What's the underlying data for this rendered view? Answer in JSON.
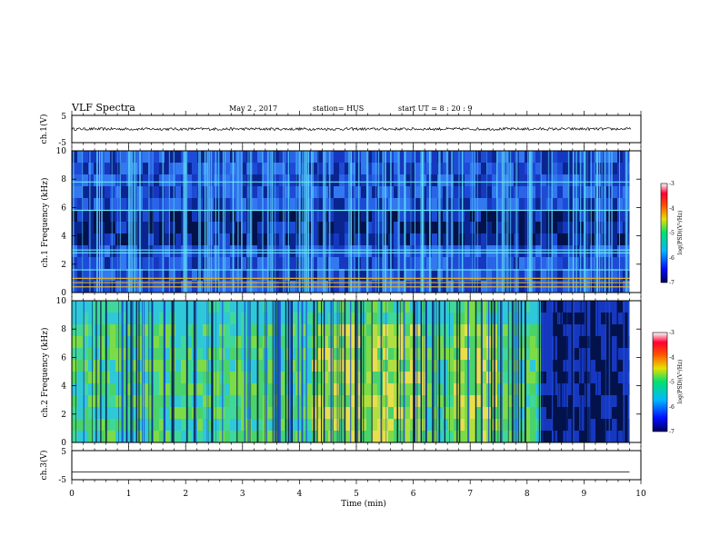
{
  "header": {
    "title": "VLF Spectra",
    "date": "May 2 , 2017",
    "station": "station= HUS",
    "start": "start UT = 8 : 20 : 9"
  },
  "colors": {
    "background": "#ffffff",
    "axis": "#000000",
    "spec_dark": "#03124a",
    "spec_blue": "#1d4bd6",
    "spec_cyan": "#38d0e6",
    "spec_green": "#49d36a",
    "spec_yellow": "#e6e04a"
  },
  "chart_data": [
    {
      "type": "line",
      "name": "ch1-waveform",
      "ylabel": "ch.1(V)",
      "ylim": [
        -5,
        5
      ],
      "yticks": [
        "5",
        "-5"
      ],
      "xlim": [
        0,
        10
      ],
      "baseline": 0,
      "noise_amplitude": 0.5
    },
    {
      "type": "heatmap",
      "name": "ch1-spectrogram",
      "ylabel": "ch.1 Frequency (kHz)",
      "xlim": [
        0,
        10
      ],
      "ylim": [
        0,
        10
      ],
      "yticks": [
        "0",
        "2",
        "4",
        "6",
        "8",
        "10"
      ],
      "data_end_min": 9.8,
      "dominant_level": "blue",
      "horizontal_lines_khz": [
        0.4,
        0.7,
        1.0,
        1.6,
        2.8,
        3.0,
        5.8,
        7.8
      ],
      "dark_band_khz": [
        3.0,
        6.0
      ]
    },
    {
      "type": "heatmap",
      "name": "ch2-spectrogram",
      "ylabel": "ch.2 Frequency (kHz)",
      "xlim": [
        0,
        10
      ],
      "ylim": [
        0,
        10
      ],
      "yticks": [
        "0",
        "2",
        "4",
        "6",
        "8",
        "10"
      ],
      "data_end_min": 9.8,
      "dominant_level": "green",
      "dark_region_start_min": 8.2
    },
    {
      "type": "line",
      "name": "ch3-waveform",
      "ylabel": "ch.3(V)",
      "ylim": [
        -5,
        5
      ],
      "yticks": [
        "5",
        "-5"
      ],
      "xlim": [
        0,
        10
      ],
      "baseline": -2.3,
      "xlabel": "Time (min)",
      "xticks": [
        "0",
        "1",
        "2",
        "3",
        "4",
        "5",
        "6",
        "7",
        "8",
        "9",
        "10"
      ]
    }
  ],
  "colorbars": [
    {
      "name": "ch1",
      "label": "log(PSD)(V²/Hz)",
      "ticks": [
        "-3",
        "-4",
        "-5",
        "-6",
        "-7"
      ]
    },
    {
      "name": "ch2",
      "label": "log(PSD)(V²/Hz)",
      "ticks": [
        "-3",
        "-4",
        "-5",
        "-6",
        "-7"
      ]
    }
  ]
}
